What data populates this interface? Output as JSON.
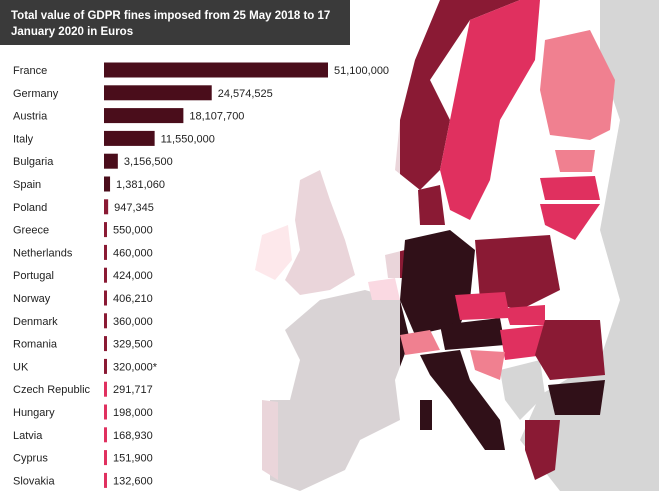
{
  "chart_data": {
    "type": "bar",
    "orientation": "horizontal",
    "title": "Total value of GDPR fines imposed from 25 May 2018 to 17 January 2020 in Euros",
    "categories": [
      "France",
      "Germany",
      "Austria",
      "Italy",
      "Bulgaria",
      "Spain",
      "Poland",
      "Greece",
      "Netherlands",
      "Portugal",
      "Norway",
      "Denmark",
      "Romania",
      "UK",
      "Czech Republic",
      "Hungary",
      "Latvia",
      "Cyprus",
      "Slovakia"
    ],
    "values": [
      51100000,
      24574525,
      18107700,
      11550000,
      3156500,
      1381060,
      947345,
      550000,
      460000,
      424000,
      406210,
      360000,
      329500,
      320000,
      291717,
      198000,
      168930,
      151900,
      132600
    ],
    "value_labels": [
      "51,100,000",
      "24,574,525",
      "18,107,700",
      "11,550,000",
      "3,156,500",
      "1,381,060",
      "947,345",
      "550,000",
      "460,000",
      "424,000",
      "406,210",
      "360,000",
      "329,500",
      "320,000*",
      "291,717",
      "198,000",
      "168,930",
      "151,900",
      "132,600"
    ],
    "bar_colors": [
      "#4a0d1b",
      "#4a0d1b",
      "#4a0d1b",
      "#4a0d1b",
      "#4a0d1b",
      "#4a0d1b",
      "#8a1a34",
      "#8a1a34",
      "#8a1a34",
      "#8a1a34",
      "#8a1a34",
      "#8a1a34",
      "#8a1a34",
      "#8a1a34",
      "#e0305f",
      "#e0305f",
      "#e0305f",
      "#e0305f",
      "#e0305f"
    ],
    "xlim": [
      0,
      51100000
    ],
    "grid": false,
    "legend": "none"
  },
  "map": {
    "colors": {
      "darkest": "#301018",
      "dark": "#8a1a34",
      "medium": "#e0305f",
      "light": "#f08090",
      "none": "#d6d6d6",
      "header": "#3a3a3a"
    }
  }
}
